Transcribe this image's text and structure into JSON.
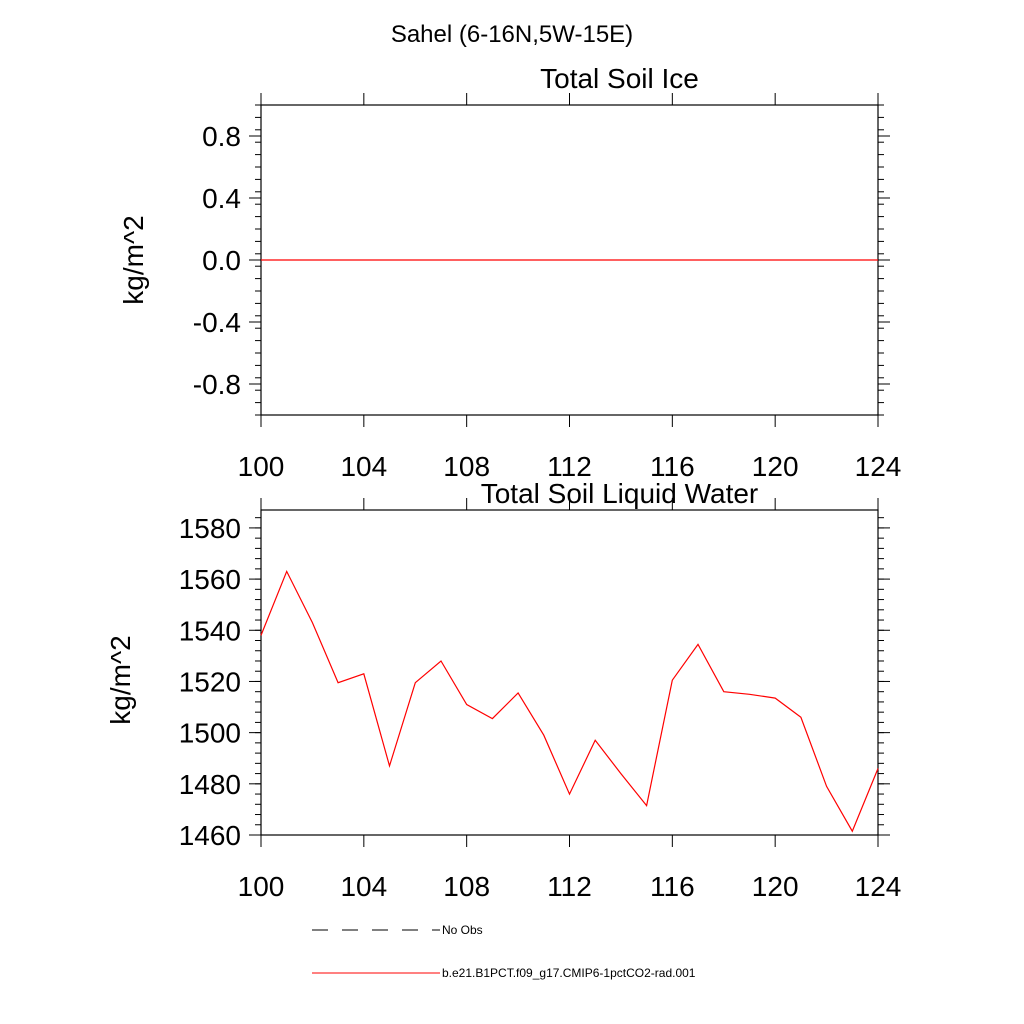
{
  "figure": {
    "main_title": "Sahel (6-16N,5W-15E)"
  },
  "chart_data": [
    {
      "type": "line",
      "title": "Total Soil Ice",
      "xlabel": "",
      "ylabel": "kg/m^2",
      "xlim": [
        100,
        124
      ],
      "ylim": [
        -1,
        1
      ],
      "x_ticks": [
        100,
        104,
        108,
        112,
        116,
        120,
        124
      ],
      "x_tick_labels": [
        "100",
        "104",
        "108",
        "112",
        "116",
        "120",
        "124"
      ],
      "y_ticks": [
        -0.8,
        -0.4,
        0.0,
        0.4,
        0.8
      ],
      "y_tick_labels": [
        "-0.8",
        "-0.4",
        "0.0",
        "0.4",
        "0.8"
      ],
      "grid": false,
      "series": [
        {
          "name": "b.e21.B1PCT.f09_g17.CMIP6-1pctCO2-rad.001",
          "color": "#ff0000",
          "x": [
            100,
            101,
            102,
            103,
            104,
            105,
            106,
            107,
            108,
            109,
            110,
            111,
            112,
            113,
            114,
            115,
            116,
            117,
            118,
            119,
            120,
            121,
            122,
            123,
            124
          ],
          "y": [
            0,
            0,
            0,
            0,
            0,
            0,
            0,
            0,
            0,
            0,
            0,
            0,
            0,
            0,
            0,
            0,
            0,
            0,
            0,
            0,
            0,
            0,
            0,
            0,
            0
          ]
        }
      ]
    },
    {
      "type": "line",
      "title": "Total Soil Liquid Water",
      "xlabel": "",
      "ylabel": "kg/m^2",
      "xlim": [
        100,
        124
      ],
      "ylim": [
        1460,
        1587
      ],
      "x_ticks": [
        100,
        104,
        108,
        112,
        116,
        120,
        124
      ],
      "x_tick_labels": [
        "100",
        "104",
        "108",
        "112",
        "116",
        "120",
        "124"
      ],
      "y_ticks": [
        1460,
        1480,
        1500,
        1520,
        1540,
        1560,
        1580
      ],
      "y_tick_labels": [
        "1460",
        "1480",
        "1500",
        "1520",
        "1540",
        "1560",
        "1580"
      ],
      "grid": false,
      "series": [
        {
          "name": "b.e21.B1PCT.f09_g17.CMIP6-1pctCO2-rad.001",
          "color": "#ff0000",
          "x": [
            100,
            101,
            102,
            103,
            104,
            105,
            106,
            107,
            108,
            109,
            110,
            111,
            112,
            113,
            114,
            115,
            116,
            117,
            118,
            119,
            120,
            121,
            122,
            123,
            124
          ],
          "y": [
            1538,
            1563,
            1543,
            1519.5,
            1523,
            1487,
            1519.5,
            1528,
            1511,
            1505.5,
            1515.5,
            1499,
            1476,
            1497,
            1484,
            1471.5,
            1520.5,
            1534.5,
            1516,
            1515,
            1513.5,
            1506,
            1479,
            1461.5,
            1486
          ]
        }
      ]
    }
  ],
  "legend": {
    "placement": "bottom-center",
    "items": [
      {
        "label": "No Obs",
        "color": "#000000",
        "style": "dashed"
      },
      {
        "label": "b.e21.B1PCT.f09_g17.CMIP6-1pctCO2-rad.001",
        "color": "#ff0000",
        "style": "solid"
      }
    ]
  }
}
